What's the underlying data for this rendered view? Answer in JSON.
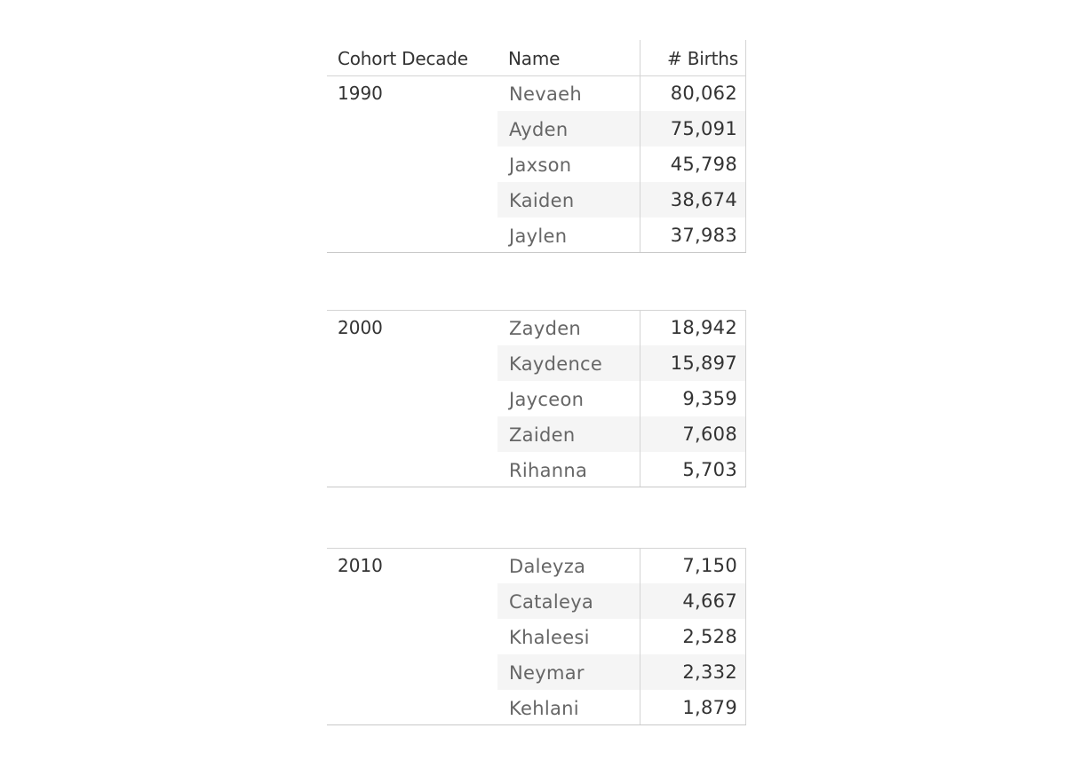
{
  "chart_data": {
    "type": "table",
    "columns": [
      "Cohort Decade",
      "Name",
      "# Births"
    ],
    "groups": [
      {
        "decade": "1990",
        "rows": [
          {
            "name": "Nevaeh",
            "births": "80,062"
          },
          {
            "name": "Ayden",
            "births": "75,091"
          },
          {
            "name": "Jaxson",
            "births": "45,798"
          },
          {
            "name": "Kaiden",
            "births": "38,674"
          },
          {
            "name": "Jaylen",
            "births": "37,983"
          }
        ]
      },
      {
        "decade": "2000",
        "rows": [
          {
            "name": "Zayden",
            "births": "18,942"
          },
          {
            "name": "Kaydence",
            "births": "15,897"
          },
          {
            "name": "Jayceon",
            "births": "9,359"
          },
          {
            "name": "Zaiden",
            "births": "7,608"
          },
          {
            "name": "Rihanna",
            "births": "5,703"
          }
        ]
      },
      {
        "decade": "2010",
        "rows": [
          {
            "name": "Daleyza",
            "births": "7,150"
          },
          {
            "name": "Cataleya",
            "births": "4,667"
          },
          {
            "name": "Khaleesi",
            "births": "2,528"
          },
          {
            "name": "Neymar",
            "births": "2,332"
          },
          {
            "name": "Kehlani",
            "births": "1,879"
          }
        ]
      }
    ]
  }
}
